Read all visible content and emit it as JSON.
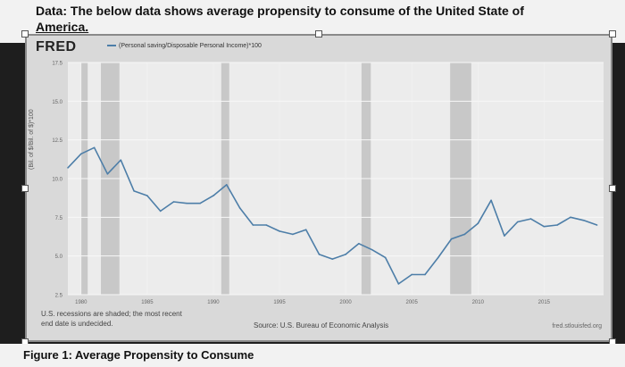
{
  "header": {
    "line1": "Data: The below data shows average propensity to consume of the United State of",
    "line2": "America."
  },
  "figure": {
    "logo": "FRED",
    "legend_label": "(Personal saving/Disposable Personal Income)*100",
    "ylabel": "(Bil. of $/Bil. of $)*100",
    "note_line1": "U.S. recessions are shaded; the most recent",
    "note_line2": "end date is undecided.",
    "source": "Source: U.S. Bureau of Economic Analysis",
    "url": "fred.stlouisfed.org"
  },
  "caption": "Figure 1: Average Propensity to Consume",
  "chart_data": {
    "type": "line",
    "title": "",
    "xlabel": "",
    "ylabel": "(Bil. of $/Bil. of $)*100",
    "xlim": [
      1979,
      2019.5
    ],
    "ylim": [
      2.5,
      17.5
    ],
    "yticks": [
      "2.5",
      "5.0",
      "7.5",
      "10.0",
      "12.5",
      "15.0",
      "17.5"
    ],
    "xticks": [
      "1980",
      "1985",
      "1990",
      "1995",
      "2000",
      "2005",
      "2010",
      "2015"
    ],
    "recessions": [
      [
        1980.0,
        1980.5
      ],
      [
        1981.5,
        1982.9
      ],
      [
        1990.6,
        1991.2
      ],
      [
        2001.2,
        2001.9
      ],
      [
        2007.9,
        2009.5
      ]
    ],
    "series": [
      {
        "color": "#4d7ea8",
        "x": [
          1979,
          1980,
          1981,
          1982,
          1983,
          1984,
          1985,
          1986,
          1987,
          1988,
          1989,
          1990,
          1991,
          1992,
          1993,
          1994,
          1995,
          1996,
          1997,
          1998,
          1999,
          2000,
          2001,
          2002,
          2003,
          2004,
          2005,
          2006,
          2007,
          2008,
          2009,
          2010,
          2011,
          2012,
          2013,
          2014,
          2015,
          2016,
          2017,
          2018,
          2019
        ],
        "y": [
          10.7,
          11.6,
          12.0,
          10.3,
          11.2,
          9.2,
          8.9,
          7.9,
          8.5,
          8.4,
          8.4,
          8.9,
          9.6,
          8.1,
          7.0,
          7.0,
          6.6,
          6.4,
          6.7,
          5.1,
          4.8,
          5.1,
          5.8,
          5.4,
          4.9,
          3.2,
          3.8,
          3.8,
          4.9,
          6.1,
          6.4,
          7.1,
          8.6,
          6.3,
          7.2,
          7.4,
          6.9,
          7.0,
          7.5,
          7.3,
          7.0
        ]
      }
    ]
  }
}
